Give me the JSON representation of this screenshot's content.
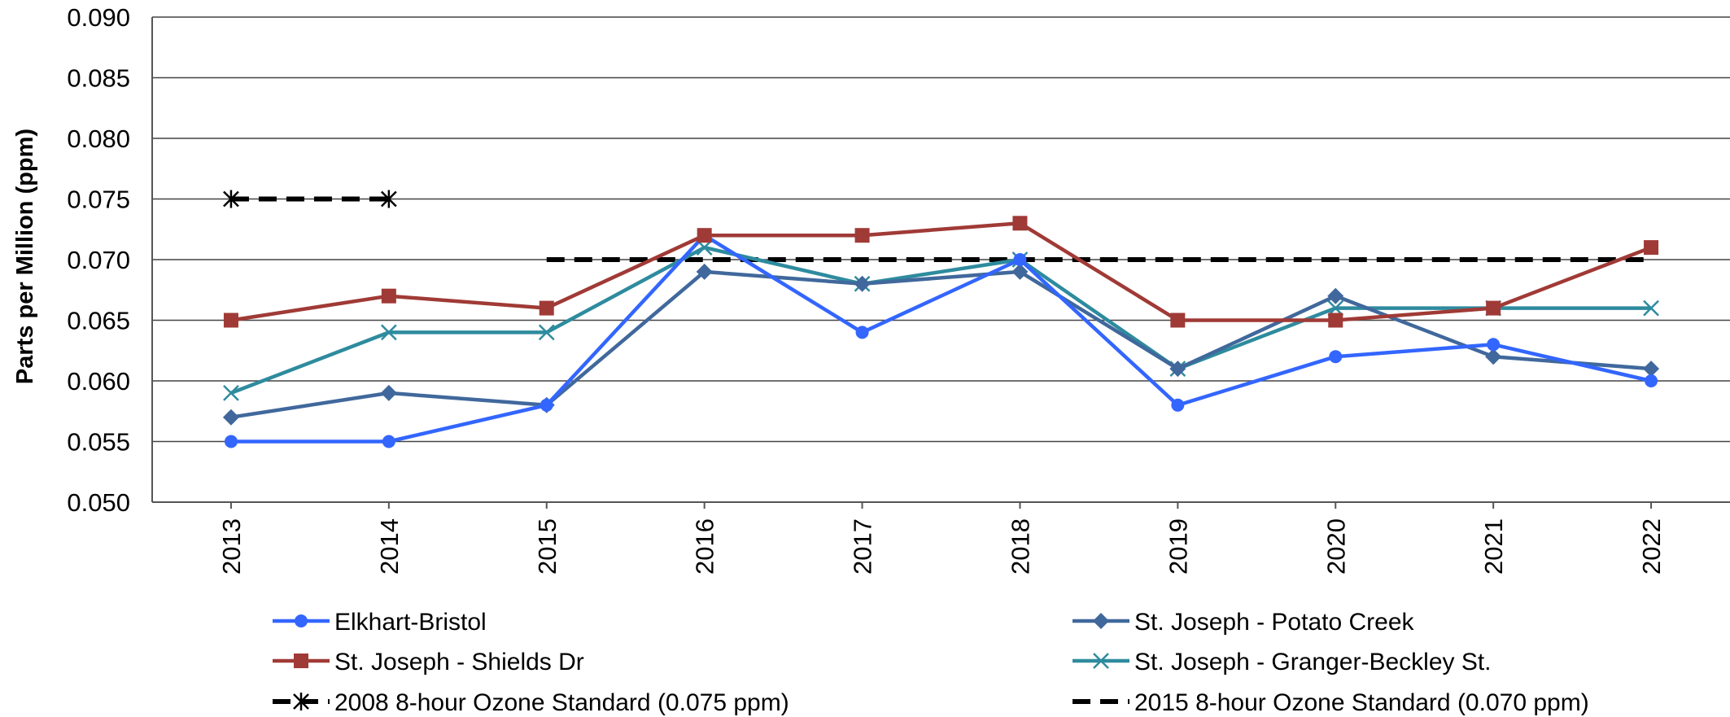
{
  "chart_data": {
    "type": "line",
    "title": "",
    "xlabel": "",
    "ylabel": "Parts per Million (ppm)",
    "ylim": [
      0.05,
      0.09
    ],
    "yticks": [
      "0.050",
      "0.055",
      "0.060",
      "0.065",
      "0.070",
      "0.075",
      "0.080",
      "0.085",
      "0.090"
    ],
    "categories": [
      "2013",
      "2014",
      "2015",
      "2016",
      "2017",
      "2018",
      "2019",
      "2020",
      "2021",
      "2022"
    ],
    "grid": "horizontal",
    "legend_position": "bottom",
    "series": [
      {
        "name": "Elkhart-Bristol",
        "color": "#3366FF",
        "marker": "circle",
        "dash": false,
        "values": [
          0.055,
          0.055,
          0.058,
          0.072,
          0.064,
          0.07,
          0.058,
          0.062,
          0.063,
          0.06
        ]
      },
      {
        "name": "St. Joseph - Potato Creek",
        "color": "#40689C",
        "marker": "diamond",
        "dash": false,
        "values": [
          0.057,
          0.059,
          0.058,
          0.069,
          0.068,
          0.069,
          0.061,
          0.067,
          0.062,
          0.061
        ]
      },
      {
        "name": "St. Joseph - Shields Dr",
        "color": "#A03A36",
        "marker": "square",
        "dash": false,
        "values": [
          0.065,
          0.067,
          0.066,
          0.072,
          0.072,
          0.073,
          0.065,
          0.065,
          0.066,
          0.071
        ]
      },
      {
        "name": "St. Joseph - Granger-Beckley St.",
        "color": "#2E8B9E",
        "marker": "x",
        "dash": false,
        "values": [
          0.059,
          0.064,
          0.064,
          0.071,
          0.068,
          0.07,
          0.061,
          0.066,
          0.066,
          0.066
        ]
      },
      {
        "name": "2008 8-hour Ozone Standard (0.075 ppm)",
        "color": "#000000",
        "marker": "star",
        "dash": true,
        "values": [
          0.075,
          0.075,
          null,
          null,
          null,
          null,
          null,
          null,
          null,
          null
        ]
      },
      {
        "name": "2015 8-hour Ozone Standard (0.070 ppm)",
        "color": "#000000",
        "marker": "none",
        "dash": true,
        "values": [
          null,
          null,
          0.07,
          0.07,
          0.07,
          0.07,
          0.07,
          0.07,
          0.07,
          0.07
        ]
      }
    ]
  }
}
